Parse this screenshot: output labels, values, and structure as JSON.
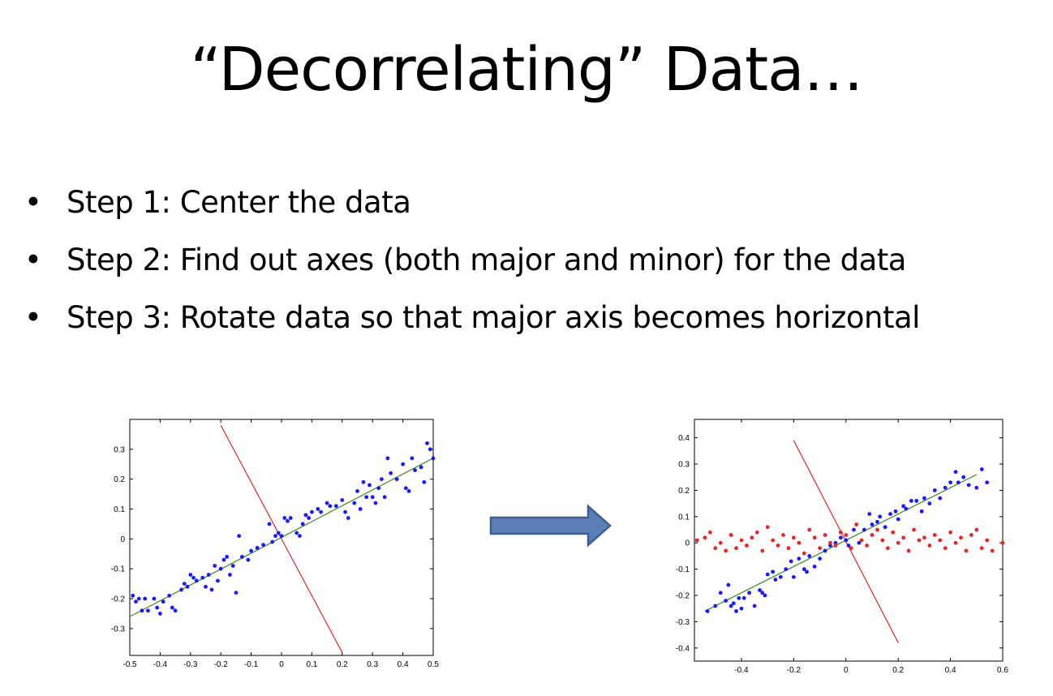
{
  "slide": {
    "title": "“Decorrelating” Data…",
    "bullet_glyph": "•",
    "bullets": [
      "Step 1: Center the data",
      "Step 2: Find out axes (both major and minor) for the data",
      "Step 3: Rotate data so that major axis becomes horizontal"
    ],
    "arrow_icon": "right-arrow-icon",
    "colors": {
      "blue_points": "#1a1aff",
      "red_points": "#e8262a",
      "major_axis": "#3b8a1f",
      "minor_axis": "#e8262a",
      "arrow_fill": "#5b7fb6",
      "arrow_stroke": "#3d5e8e"
    }
  },
  "chart_data": [
    {
      "type": "scatter",
      "xlim": [
        -0.5,
        0.5
      ],
      "ylim": [
        -0.39,
        0.4
      ],
      "xticks": [
        "-0.5",
        "-0.4",
        "-0.3",
        "-0.2",
        "-0.1",
        "0",
        "0.1",
        "0.2",
        "0.3",
        "0.4",
        "0.5"
      ],
      "xtick_values": [
        -0.5,
        -0.4,
        -0.3,
        -0.2,
        -0.1,
        0,
        0.1,
        0.2,
        0.3,
        0.4,
        0.5
      ],
      "yticks": [
        "0.3",
        "0.2",
        "0.1",
        "0",
        "-0.1",
        "-0.2",
        "-0.3"
      ],
      "ytick_values": [
        0.3,
        0.2,
        0.1,
        0,
        -0.1,
        -0.2,
        -0.3
      ],
      "grid": false,
      "series": [
        {
          "color": "#1a1aff",
          "points": [
            [
              -0.49,
              -0.19
            ],
            [
              -0.48,
              -0.21
            ],
            [
              -0.47,
              -0.2
            ],
            [
              -0.46,
              -0.24
            ],
            [
              -0.45,
              -0.2
            ],
            [
              -0.44,
              -0.24
            ],
            [
              -0.42,
              -0.2
            ],
            [
              -0.41,
              -0.23
            ],
            [
              -0.4,
              -0.25
            ],
            [
              -0.39,
              -0.21
            ],
            [
              -0.37,
              -0.19
            ],
            [
              -0.36,
              -0.23
            ],
            [
              -0.35,
              -0.24
            ],
            [
              -0.33,
              -0.17
            ],
            [
              -0.32,
              -0.15
            ],
            [
              -0.31,
              -0.16
            ],
            [
              -0.3,
              -0.12
            ],
            [
              -0.29,
              -0.13
            ],
            [
              -0.28,
              -0.14
            ],
            [
              -0.26,
              -0.13
            ],
            [
              -0.25,
              -0.16
            ],
            [
              -0.24,
              -0.12
            ],
            [
              -0.23,
              -0.17
            ],
            [
              -0.22,
              -0.09
            ],
            [
              -0.21,
              -0.14
            ],
            [
              -0.2,
              -0.1
            ],
            [
              -0.19,
              -0.07
            ],
            [
              -0.18,
              -0.06
            ],
            [
              -0.17,
              -0.12
            ],
            [
              -0.16,
              -0.09
            ],
            [
              -0.15,
              -0.18
            ],
            [
              -0.14,
              0.01
            ],
            [
              -0.13,
              -0.06
            ],
            [
              -0.11,
              -0.07
            ],
            [
              -0.1,
              -0.04
            ],
            [
              -0.08,
              -0.03
            ],
            [
              -0.06,
              -0.02
            ],
            [
              -0.04,
              0.05
            ],
            [
              -0.03,
              -0.01
            ],
            [
              -0.02,
              0.01
            ],
            [
              -0.01,
              0.02
            ],
            [
              0.0,
              0.01
            ],
            [
              0.01,
              0.07
            ],
            [
              0.02,
              0.06
            ],
            [
              0.03,
              0.07
            ],
            [
              0.05,
              0.02
            ],
            [
              0.06,
              0.01
            ],
            [
              0.07,
              0.05
            ],
            [
              0.08,
              0.08
            ],
            [
              0.09,
              0.07
            ],
            [
              0.1,
              0.09
            ],
            [
              0.12,
              0.1
            ],
            [
              0.13,
              0.09
            ],
            [
              0.15,
              0.12
            ],
            [
              0.16,
              0.11
            ],
            [
              0.18,
              0.11
            ],
            [
              0.2,
              0.13
            ],
            [
              0.21,
              0.09
            ],
            [
              0.22,
              0.07
            ],
            [
              0.24,
              0.12
            ],
            [
              0.25,
              0.16
            ],
            [
              0.26,
              0.1
            ],
            [
              0.27,
              0.19
            ],
            [
              0.28,
              0.14
            ],
            [
              0.29,
              0.18
            ],
            [
              0.3,
              0.14
            ],
            [
              0.31,
              0.12
            ],
            [
              0.32,
              0.17
            ],
            [
              0.33,
              0.2
            ],
            [
              0.34,
              0.14
            ],
            [
              0.35,
              0.27
            ],
            [
              0.36,
              0.22
            ],
            [
              0.38,
              0.2
            ],
            [
              0.4,
              0.25
            ],
            [
              0.41,
              0.17
            ],
            [
              0.42,
              0.16
            ],
            [
              0.43,
              0.27
            ],
            [
              0.44,
              0.23
            ],
            [
              0.46,
              0.24
            ],
            [
              0.47,
              0.19
            ],
            [
              0.48,
              0.32
            ],
            [
              0.49,
              0.3
            ],
            [
              0.5,
              0.27
            ]
          ]
        }
      ],
      "lines": [
        {
          "color": "#3b8a1f",
          "from": [
            -0.5,
            -0.26
          ],
          "to": [
            0.5,
            0.27
          ]
        },
        {
          "color": "#e8262a",
          "from": [
            -0.2,
            0.38
          ],
          "to": [
            0.2,
            -0.38
          ]
        }
      ]
    },
    {
      "type": "scatter",
      "xlim": [
        -0.58,
        0.6
      ],
      "ylim": [
        -0.45,
        0.47
      ],
      "xticks": [
        "-0.4",
        "-0.2",
        "0",
        "0.2",
        "0.4",
        "0.6"
      ],
      "xtick_values": [
        -0.4,
        -0.2,
        0,
        0.2,
        0.4,
        0.6
      ],
      "yticks": [
        "0.4",
        "0.3",
        "0.2",
        "0.1",
        "0",
        "-0.1",
        "-0.2",
        "-0.3",
        "-0.4"
      ],
      "ytick_values": [
        0.4,
        0.3,
        0.2,
        0.1,
        0,
        -0.1,
        -0.2,
        -0.3,
        -0.4
      ],
      "grid": false,
      "series": [
        {
          "color": "#1a1aff",
          "points": [
            [
              -0.53,
              -0.26
            ],
            [
              -0.5,
              -0.24
            ],
            [
              -0.48,
              -0.19
            ],
            [
              -0.46,
              -0.22
            ],
            [
              -0.45,
              -0.16
            ],
            [
              -0.44,
              -0.24
            ],
            [
              -0.43,
              -0.23
            ],
            [
              -0.42,
              -0.26
            ],
            [
              -0.41,
              -0.21
            ],
            [
              -0.4,
              -0.25
            ],
            [
              -0.39,
              -0.21
            ],
            [
              -0.37,
              -0.19
            ],
            [
              -0.35,
              -0.24
            ],
            [
              -0.33,
              -0.18
            ],
            [
              -0.32,
              -0.19
            ],
            [
              -0.31,
              -0.2
            ],
            [
              -0.3,
              -0.12
            ],
            [
              -0.28,
              -0.11
            ],
            [
              -0.27,
              -0.14
            ],
            [
              -0.25,
              -0.13
            ],
            [
              -0.23,
              -0.1
            ],
            [
              -0.21,
              -0.07
            ],
            [
              -0.2,
              -0.13
            ],
            [
              -0.18,
              -0.06
            ],
            [
              -0.16,
              -0.1
            ],
            [
              -0.15,
              -0.11
            ],
            [
              -0.14,
              -0.05
            ],
            [
              -0.12,
              -0.09
            ],
            [
              -0.1,
              -0.06
            ],
            [
              -0.08,
              -0.03
            ],
            [
              -0.06,
              -0.01
            ],
            [
              -0.04,
              0.0
            ],
            [
              -0.02,
              0.02
            ],
            [
              0.0,
              0.01
            ],
            [
              0.01,
              -0.01
            ],
            [
              0.03,
              0.05
            ],
            [
              0.05,
              0.0
            ],
            [
              0.07,
              0.05
            ],
            [
              0.09,
              0.11
            ],
            [
              0.1,
              0.07
            ],
            [
              0.12,
              0.08
            ],
            [
              0.13,
              0.1
            ],
            [
              0.15,
              0.06
            ],
            [
              0.17,
              0.11
            ],
            [
              0.19,
              0.12
            ],
            [
              0.2,
              0.09
            ],
            [
              0.22,
              0.14
            ],
            [
              0.23,
              0.13
            ],
            [
              0.25,
              0.16
            ],
            [
              0.27,
              0.16
            ],
            [
              0.29,
              0.12
            ],
            [
              0.3,
              0.17
            ],
            [
              0.32,
              0.15
            ],
            [
              0.34,
              0.2
            ],
            [
              0.36,
              0.17
            ],
            [
              0.38,
              0.21
            ],
            [
              0.4,
              0.23
            ],
            [
              0.42,
              0.27
            ],
            [
              0.43,
              0.23
            ],
            [
              0.45,
              0.25
            ],
            [
              0.47,
              0.22
            ],
            [
              0.5,
              0.21
            ],
            [
              0.52,
              0.28
            ],
            [
              0.54,
              0.23
            ]
          ]
        },
        {
          "color": "#e8262a",
          "points": [
            [
              -0.57,
              0.01
            ],
            [
              -0.54,
              0.02
            ],
            [
              -0.52,
              0.04
            ],
            [
              -0.5,
              -0.02
            ],
            [
              -0.48,
              0.0
            ],
            [
              -0.46,
              -0.03
            ],
            [
              -0.44,
              0.03
            ],
            [
              -0.42,
              -0.02
            ],
            [
              -0.4,
              0.01
            ],
            [
              -0.38,
              -0.01
            ],
            [
              -0.36,
              0.02
            ],
            [
              -0.34,
              0.04
            ],
            [
              -0.32,
              -0.03
            ],
            [
              -0.3,
              0.06
            ],
            [
              -0.28,
              0.01
            ],
            [
              -0.26,
              -0.01
            ],
            [
              -0.24,
              0.03
            ],
            [
              -0.22,
              -0.02
            ],
            [
              -0.2,
              0.02
            ],
            [
              -0.18,
              0.0
            ],
            [
              -0.16,
              -0.04
            ],
            [
              -0.14,
              0.05
            ],
            [
              -0.12,
              0.02
            ],
            [
              -0.1,
              -0.02
            ],
            [
              -0.08,
              0.03
            ],
            [
              -0.06,
              0.0
            ],
            [
              -0.04,
              -0.01
            ],
            [
              -0.02,
              0.04
            ],
            [
              0.0,
              0.03
            ],
            [
              0.02,
              -0.02
            ],
            [
              0.04,
              0.07
            ],
            [
              0.06,
              0.01
            ],
            [
              0.08,
              -0.01
            ],
            [
              0.1,
              0.03
            ],
            [
              0.12,
              0.05
            ],
            [
              0.14,
              0.01
            ],
            [
              0.16,
              -0.02
            ],
            [
              0.18,
              0.04
            ],
            [
              0.2,
              0.0
            ],
            [
              0.22,
              0.02
            ],
            [
              0.24,
              -0.03
            ],
            [
              0.26,
              0.05
            ],
            [
              0.28,
              0.01
            ],
            [
              0.3,
              0.02
            ],
            [
              0.32,
              -0.01
            ],
            [
              0.34,
              0.03
            ],
            [
              0.36,
              0.01
            ],
            [
              0.38,
              -0.02
            ],
            [
              0.4,
              0.04
            ],
            [
              0.42,
              0.0
            ],
            [
              0.44,
              0.02
            ],
            [
              0.46,
              -0.03
            ],
            [
              0.48,
              0.03
            ],
            [
              0.5,
              0.05
            ],
            [
              0.52,
              -0.02
            ],
            [
              0.54,
              0.01
            ],
            [
              0.56,
              -0.03
            ],
            [
              0.6,
              0.0
            ]
          ]
        }
      ],
      "lines": [
        {
          "color": "#3b8a1f",
          "from": [
            -0.54,
            -0.26
          ],
          "to": [
            0.5,
            0.26
          ]
        },
        {
          "color": "#e8262a",
          "from": [
            -0.2,
            0.39
          ],
          "to": [
            0.2,
            -0.38
          ]
        }
      ]
    }
  ]
}
